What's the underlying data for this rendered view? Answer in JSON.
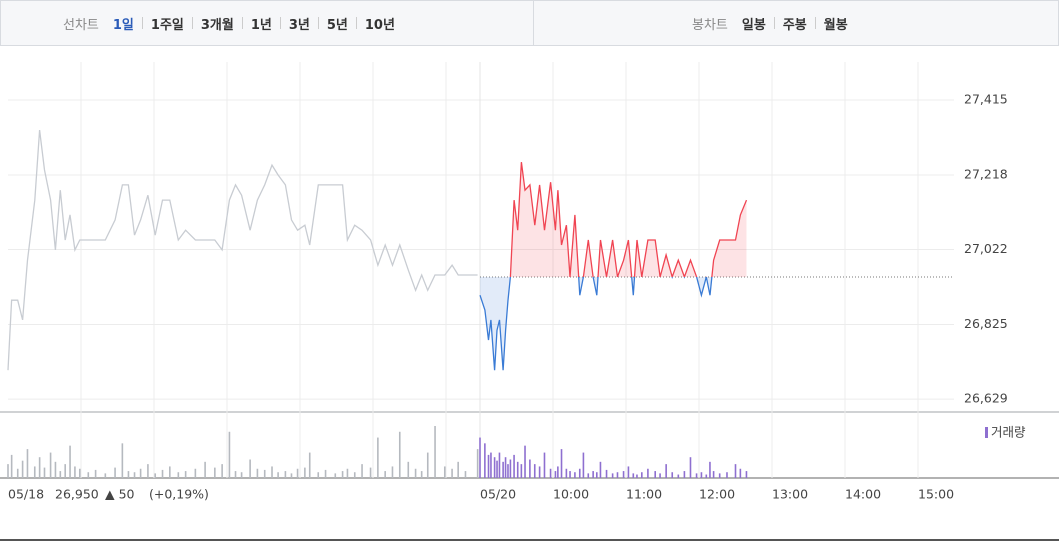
{
  "tabs": {
    "line_label": "선차트",
    "line_items": [
      "1일",
      "1주일",
      "3개월",
      "1년",
      "3년",
      "5년",
      "10년"
    ],
    "active_index": 0,
    "candle_label": "봉차트",
    "candle_items": [
      "일봉",
      "주봉",
      "월봉"
    ]
  },
  "chart_data": {
    "type": "line",
    "ylim": [
      26595,
      27515
    ],
    "yticks": [
      {
        "value": 27415,
        "label": "27,415"
      },
      {
        "value": 27218,
        "label": "27,218"
      },
      {
        "value": 27022,
        "label": "27,022"
      },
      {
        "value": 26825,
        "label": "26,825"
      },
      {
        "value": 26629,
        "label": "26,629"
      }
    ],
    "xlim": [
      540,
      930
    ],
    "xticks": [
      {
        "value": 600,
        "label": "10:00"
      },
      {
        "value": 660,
        "label": "11:00"
      },
      {
        "value": 720,
        "label": "12:00"
      },
      {
        "value": 780,
        "label": "13:00"
      },
      {
        "value": 840,
        "label": "14:00"
      },
      {
        "value": 900,
        "label": "15:00"
      }
    ],
    "base_value": 26950,
    "up_color": "#f04452",
    "down_color": "#3a7bd5",
    "grid": true,
    "volume_label": "거래량",
    "volume_legend_color": "#8e6fd0",
    "quote": {
      "price": "26,950",
      "change": "▲ 50",
      "rate": "(+0,19%)",
      "color": "#e8323c"
    },
    "days": [
      {
        "label": "05/18",
        "color": "#c8ccd2",
        "volume_color": "#b5b9bf",
        "x": [
          540,
          543,
          548,
          552,
          556,
          562,
          566,
          570,
          575,
          579,
          583,
          587,
          591,
          595,
          599,
          606,
          612,
          620,
          628,
          634,
          639,
          644,
          649,
          655,
          661,
          667,
          673,
          680,
          686,
          694,
          702,
          710,
          716,
          722,
          727,
          732,
          739,
          745,
          751,
          757,
          762,
          768,
          773,
          778,
          784,
          788,
          795,
          801,
          809,
          815,
          819,
          825,
          831,
          838,
          844,
          850,
          856,
          862,
          869,
          875,
          880,
          885,
          891,
          899,
          905,
          910,
          916,
          926
        ],
        "values": [
          26705,
          26889,
          26889,
          26837,
          26994,
          27152,
          27336,
          27231,
          27152,
          27021,
          27178,
          27047,
          27113,
          27021,
          27047,
          27047,
          27047,
          27047,
          27100,
          27192,
          27192,
          27060,
          27100,
          27165,
          27060,
          27152,
          27152,
          27047,
          27073,
          27047,
          27047,
          27047,
          27021,
          27152,
          27192,
          27165,
          27073,
          27152,
          27192,
          27244,
          27218,
          27192,
          27100,
          27073,
          27086,
          27034,
          27192,
          27192,
          27192,
          27192,
          27047,
          27086,
          27073,
          27047,
          26981,
          27034,
          26981,
          27034,
          26968,
          26915,
          26955,
          26915,
          26955,
          26955,
          26981,
          26955,
          26955,
          26955
        ],
        "volume": [
          12,
          20,
          8,
          15,
          25,
          10,
          18,
          9,
          22,
          14,
          6,
          12,
          28,
          10,
          8,
          5,
          7,
          4,
          9,
          30,
          6,
          5,
          8,
          12,
          4,
          7,
          10,
          5,
          6,
          8,
          14,
          9,
          12,
          40,
          6,
          5,
          16,
          8,
          7,
          10,
          5,
          6,
          4,
          8,
          9,
          22,
          5,
          7,
          4,
          6,
          8,
          5,
          12,
          9,
          35,
          6,
          10,
          40,
          14,
          8,
          6,
          22,
          45,
          10,
          8,
          14,
          6,
          25
        ]
      },
      {
        "label": "05/20",
        "color": "#f04452",
        "volume_color": "#8e6fd0",
        "x": [
          540,
          544,
          547,
          549,
          552,
          554,
          556,
          559,
          561,
          563,
          565,
          568,
          571,
          574,
          577,
          581,
          585,
          589,
          593,
          598,
          602,
          604,
          607,
          611,
          614,
          618,
          622,
          625,
          629,
          633,
          636,
          639,
          644,
          649,
          653,
          658,
          662,
          666,
          669,
          673,
          678,
          684,
          688,
          693,
          698,
          703,
          708,
          713,
          718,
          722,
          726,
          729,
          732,
          737,
          743,
          750,
          754,
          759
        ],
        "values": [
          26902,
          26863,
          26784,
          26837,
          26705,
          26810,
          26837,
          26705,
          26810,
          26889,
          26950,
          27152,
          27073,
          27252,
          27178,
          27192,
          27086,
          27192,
          27073,
          27199,
          27073,
          27178,
          27034,
          27086,
          26950,
          27113,
          26902,
          26950,
          27047,
          26950,
          26902,
          27047,
          26950,
          27047,
          26950,
          26994,
          27047,
          26902,
          27047,
          26950,
          27047,
          27047,
          26950,
          27008,
          26950,
          26994,
          26950,
          26994,
          26950,
          26902,
          26950,
          26902,
          26994,
          27047,
          27047,
          27047,
          27113,
          27152
        ],
        "volume": [
          35,
          30,
          20,
          22,
          18,
          15,
          22,
          14,
          18,
          12,
          16,
          20,
          14,
          12,
          28,
          16,
          12,
          10,
          22,
          8,
          6,
          10,
          25,
          8,
          6,
          5,
          8,
          22,
          4,
          6,
          5,
          14,
          7,
          4,
          5,
          6,
          10,
          4,
          3,
          5,
          8,
          6,
          4,
          12,
          5,
          3,
          6,
          18,
          4,
          5,
          3,
          14,
          6,
          4,
          5,
          12,
          8,
          6
        ]
      }
    ]
  }
}
